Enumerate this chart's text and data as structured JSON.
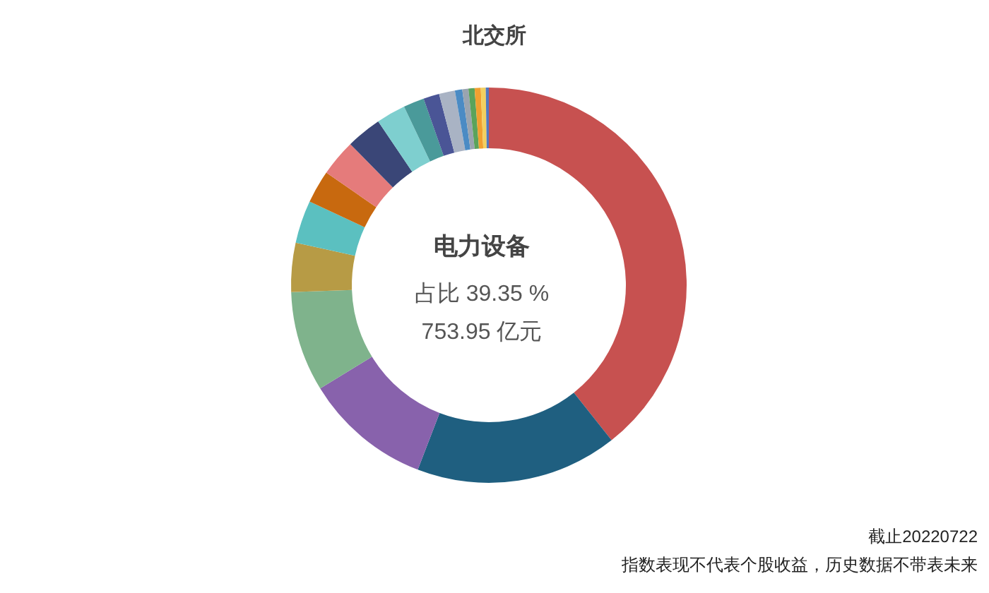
{
  "chart_data": {
    "type": "donut",
    "title": "北交所",
    "categories": [
      null,
      null,
      null,
      null,
      null,
      null,
      null,
      null,
      null,
      null,
      null,
      null,
      null,
      null,
      null,
      null,
      null,
      null,
      null
    ],
    "values": [
      39.35,
      16.5,
      10.4,
      8.2,
      4.0,
      3.5,
      2.7,
      3.0,
      2.9,
      2.4,
      1.7,
      1.3,
      1.3,
      0.6,
      0.5,
      0.5,
      0.5,
      0.4,
      0.25
    ],
    "colors": [
      "#c75150",
      "#1f5f80",
      "#8862ac",
      "#7fb38c",
      "#b79b45",
      "#5bc0c0",
      "#c8690f",
      "#e57b7b",
      "#3a4677",
      "#7ecfcf",
      "#4a9a9a",
      "#4a5596",
      "#a9b3c4",
      "#4b8bc4",
      "#9aa4b0",
      "#5ba35b",
      "#f0a030",
      "#f2d060",
      "#5078c0"
    ],
    "annotations": [
      "电力设备",
      "占比 39.35 %",
      "753.95 亿元",
      "截止20220722",
      "指数表现不代表个股收益，历史数据不带表未来"
    ]
  }
}
